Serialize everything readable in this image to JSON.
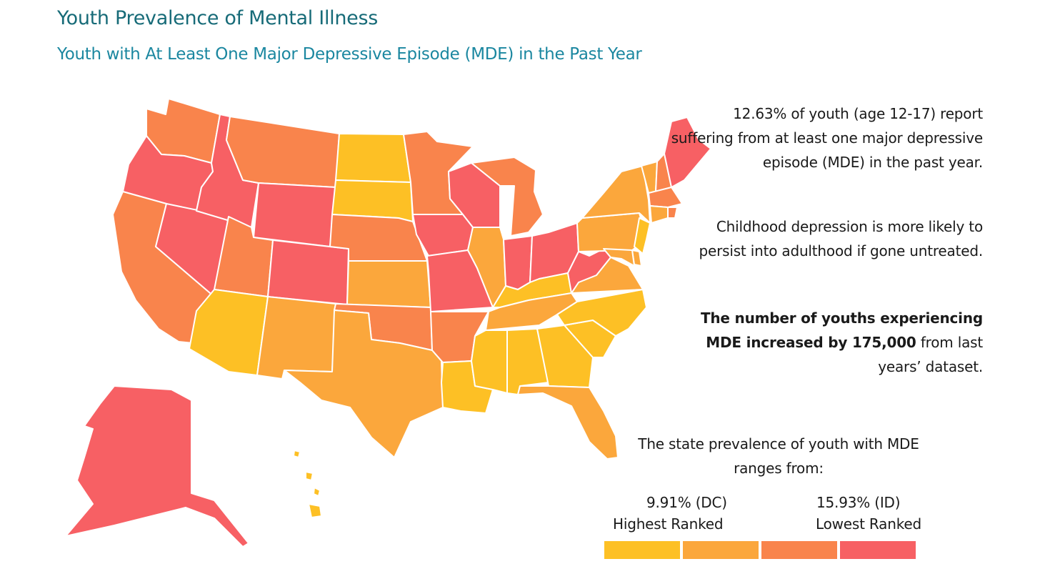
{
  "title": "Youth Prevalence of Mental Illness",
  "subtitle": "Youth with At Least One Major Depressive Episode (MDE) in the Past Year",
  "info": {
    "p1": "12.63% of youth (age 12-17) report suffering from at least one major depressive episode (MDE) in the past year.",
    "p2": "Childhood depression is more likely to persist into adulthood if gone untreated.",
    "p3_bold": "The number of youths experiencing MDE increased by 175,000",
    "p3_rest": " from last years’ dataset."
  },
  "legend": {
    "intro": "The state prevalence of youth with MDE ranges from:",
    "low_value": "9.91% (DC)",
    "low_label": "Highest Ranked",
    "high_value": "15.93% (ID)",
    "high_label": "Lowest Ranked",
    "colors": [
      "#fdc025",
      "#fba73c",
      "#f9844c",
      "#f76064"
    ]
  },
  "map_data": {
    "states": {
      "WA": 3,
      "OR": 4,
      "CA": 3,
      "NV": 4,
      "ID": 4,
      "MT": 3,
      "WY": 4,
      "UT": 3,
      "AZ": 1,
      "CO": 4,
      "NM": 2,
      "ND": 1,
      "SD": 1,
      "NE": 3,
      "KS": 2,
      "OK": 3,
      "TX": 2,
      "MN": 3,
      "IA": 4,
      "MO": 4,
      "AR": 3,
      "LA": 1,
      "WI": 4,
      "IL": 2,
      "MI": 3,
      "IN": 4,
      "OH": 4,
      "KY": 1,
      "TN": 2,
      "MS": 1,
      "AL": 1,
      "GA": 1,
      "FL": 2,
      "SC": 1,
      "NC": 1,
      "VA": 2,
      "WV": 4,
      "PA": 2,
      "NY": 2,
      "ME": 4,
      "VT": 2,
      "NH": 3,
      "MA": 3,
      "CT": 2,
      "RI": 3,
      "NJ": 1,
      "DE": 2,
      "MD": 2,
      "AK": 4,
      "HI": 1
    }
  }
}
